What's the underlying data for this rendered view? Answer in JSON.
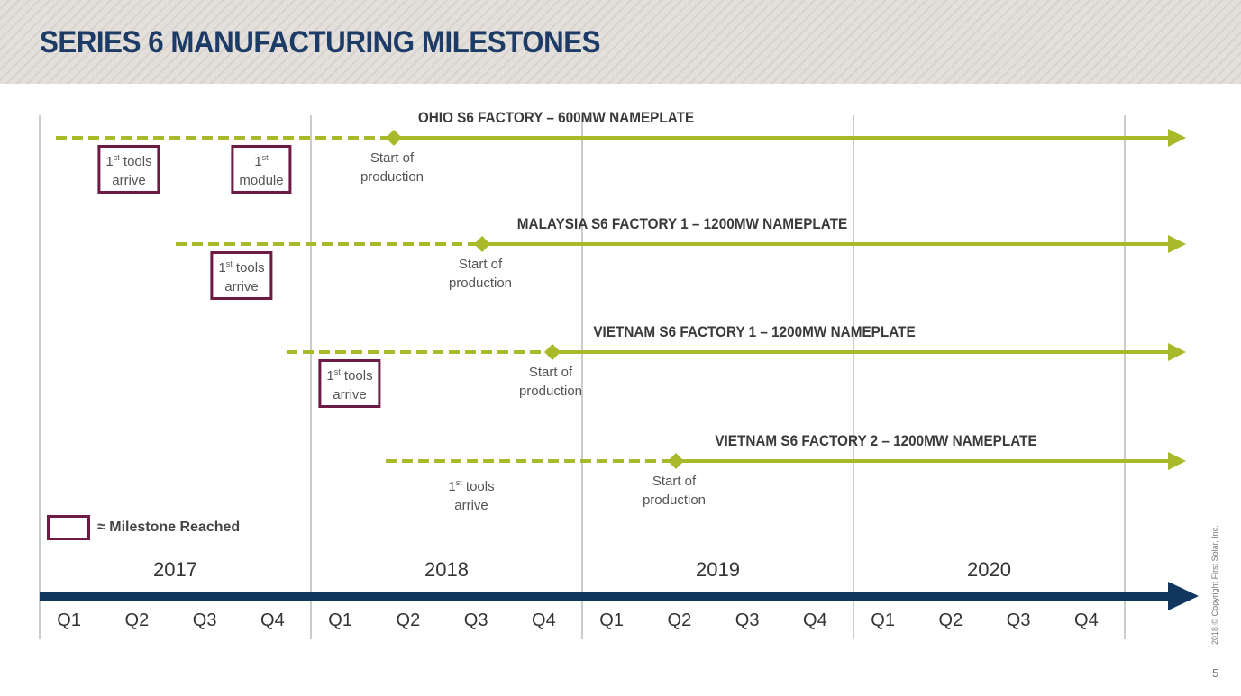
{
  "title": "SERIES 6 MANUFACTURING MILESTONES",
  "colors": {
    "title": "#1c3b66",
    "line": "#a8b92a",
    "milestone_box": "#6d1a45",
    "timeline": "#12375f"
  },
  "rows": [
    {
      "title": "OHIO S6 FACTORY – 600MW NAMEPLATE",
      "start": "Start of|production",
      "milestones": [
        {
          "sup": "st",
          "pre": "1",
          "text": " tools|arrive",
          "reached": true
        },
        {
          "sup": "st",
          "pre": "1",
          "text": "|module",
          "reached": true
        }
      ]
    },
    {
      "title": "MALAYSIA S6 FACTORY 1 – 1200MW NAMEPLATE",
      "start": "Start of|production",
      "milestones": [
        {
          "sup": "st",
          "pre": "1",
          "text": " tools|arrive",
          "reached": true
        }
      ]
    },
    {
      "title": "VIETNAM S6 FACTORY 1 – 1200MW NAMEPLATE",
      "start": "Start of|production",
      "milestones": [
        {
          "sup": "st",
          "pre": "1",
          "text": " tools|arrive",
          "reached": true
        }
      ]
    },
    {
      "title": "VIETNAM S6 FACTORY 2 – 1200MW NAMEPLATE",
      "start": "Start of|production",
      "milestones": [
        {
          "sup": "st",
          "pre": "1",
          "text": " tools|arrive",
          "reached": false
        }
      ]
    }
  ],
  "legend": {
    "symbol": "≈",
    "label": "Milestone Reached"
  },
  "years": [
    "2017",
    "2018",
    "2019",
    "2020"
  ],
  "quarters": [
    "Q1",
    "Q2",
    "Q3",
    "Q4"
  ],
  "copyright": "2018 © Copyright First Solar, Inc.",
  "page_number": "5"
}
